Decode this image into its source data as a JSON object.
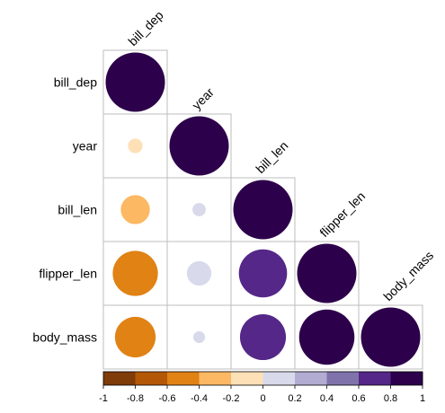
{
  "chart_data": {
    "type": "heatmap",
    "glyph": "circle",
    "layout": "lower-triangle",
    "row_labels": [
      "bill_dep",
      "year",
      "bill_len",
      "flipper_len",
      "body_mass"
    ],
    "col_labels": [
      "bill_dep",
      "year",
      "bill_len",
      "flipper_len",
      "body_mass"
    ],
    "matrix": [
      [
        1.0,
        null,
        null,
        null,
        null
      ],
      [
        -0.06,
        1.0,
        null,
        null,
        null
      ],
      [
        -0.24,
        0.05,
        1.0,
        null,
        null
      ],
      [
        -0.58,
        0.17,
        0.66,
        1.0,
        null
      ],
      [
        -0.47,
        0.04,
        0.6,
        0.87,
        1.0
      ]
    ],
    "colorbar": {
      "range": [
        -1,
        1
      ],
      "ticks": [
        "-1",
        "-0.8",
        "-0.6",
        "-0.4",
        "-0.2",
        "0",
        "0.2",
        "0.4",
        "0.6",
        "0.8",
        "1"
      ],
      "colors": [
        "#7f3b08",
        "#b35806",
        "#e08214",
        "#fdb863",
        "#fee0b6",
        "#d8daeb",
        "#b2abd2",
        "#8073ac",
        "#542788",
        "#2d004b"
      ]
    },
    "grid": true
  }
}
